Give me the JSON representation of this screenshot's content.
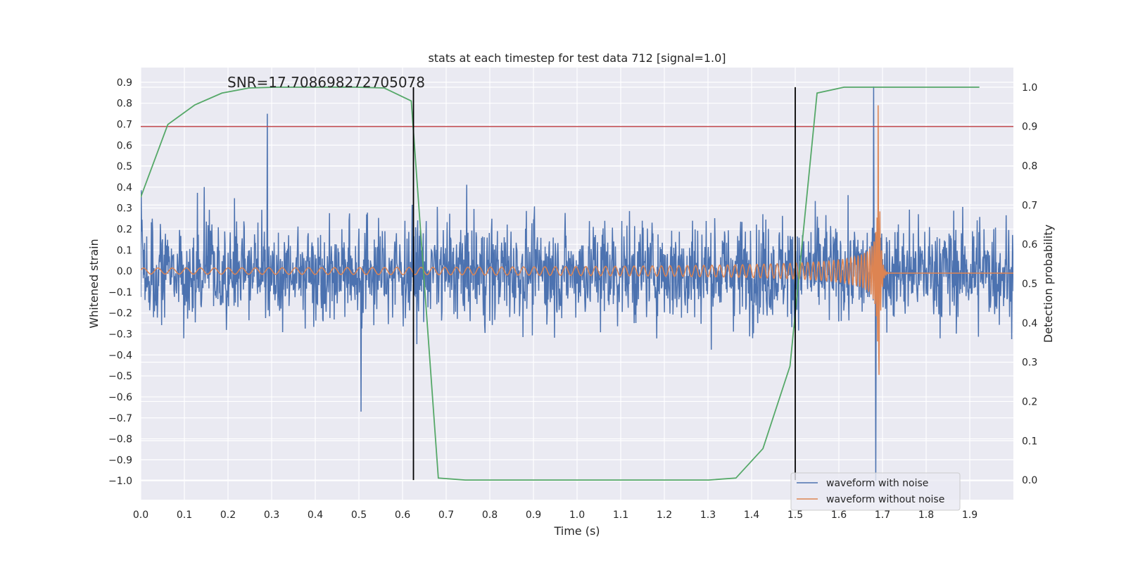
{
  "chart_data": {
    "type": "line",
    "title": "stats at each timestep for test data 712 [signal=1.0]",
    "xlabel": "Time (s)",
    "ylabel_left": "Whitened strain",
    "ylabel_right": "Detection probability",
    "xlim": [
      0.0,
      2.0
    ],
    "ylim_left": [
      -1.09,
      0.97
    ],
    "ylim_right": [
      -0.05,
      1.05
    ],
    "x_ticks": [
      "0.0",
      "0.1",
      "0.2",
      "0.3",
      "0.4",
      "0.5",
      "0.6",
      "0.7",
      "0.8",
      "0.9",
      "1.0",
      "1.1",
      "1.2",
      "1.3",
      "1.4",
      "1.5",
      "1.6",
      "1.7",
      "1.8",
      "1.9"
    ],
    "y_ticks_left": [
      "0.9",
      "0.8",
      "0.7",
      "0.6",
      "0.5",
      "0.4",
      "0.3",
      "0.2",
      "0.1",
      "0.0",
      "−0.1",
      "−0.2",
      "−0.3",
      "−0.4",
      "−0.5",
      "−0.6",
      "−0.7",
      "−0.8",
      "−0.9",
      "−1.0"
    ],
    "y_ticks_right": [
      "1.0",
      "0.9",
      "0.8",
      "0.7",
      "0.6",
      "0.5",
      "0.4",
      "0.3",
      "0.2",
      "0.1",
      "0.0"
    ],
    "annotation": "SNR=17.708698272705078",
    "threshold_line_right": 0.9,
    "vertical_lines": [
      0.625,
      1.5
    ],
    "grid": true,
    "legend_position": "lower-right",
    "series": [
      {
        "name": "waveform with noise",
        "color": "#4c72b0",
        "axis": "left",
        "kind": "noise",
        "x_range": [
          0.0,
          2.0
        ],
        "notable_points": [
          {
            "x": 0.29,
            "y": 0.75
          },
          {
            "x": 0.505,
            "y": -0.67
          },
          {
            "x": 1.68,
            "y": 0.88
          },
          {
            "x": 1.685,
            "y": -1.0
          }
        ]
      },
      {
        "name": "waveform without noise",
        "color": "#dd8452",
        "axis": "left",
        "kind": "chirp",
        "x_range": [
          0.0,
          2.0
        ],
        "merger_time": 1.69,
        "peak_amplitude": 0.8
      },
      {
        "color": "#55a868",
        "axis": "right",
        "kind": "probability",
        "x": [
          0.0,
          0.062,
          0.124,
          0.186,
          0.248,
          0.31,
          0.372,
          0.434,
          0.496,
          0.558,
          0.62,
          0.682,
          0.744,
          0.806,
          0.868,
          0.93,
          0.992,
          1.054,
          1.116,
          1.178,
          1.24,
          1.302,
          1.364,
          1.426,
          1.488,
          1.55,
          1.612,
          1.674,
          1.736,
          1.798,
          1.86,
          1.922
        ],
        "y": [
          0.72,
          0.905,
          0.955,
          0.985,
          0.998,
          1.0,
          1.0,
          1.0,
          1.0,
          0.998,
          0.965,
          0.005,
          0.0,
          0.0,
          0.0,
          0.0,
          0.0,
          0.0,
          0.0,
          0.0,
          0.0,
          0.0,
          0.005,
          0.08,
          0.29,
          0.985,
          1.0,
          1.0,
          1.0,
          1.0,
          1.0,
          1.0
        ]
      },
      {
        "color": "#c44e52",
        "axis": "right",
        "kind": "threshold",
        "value": 0.9
      }
    ]
  }
}
